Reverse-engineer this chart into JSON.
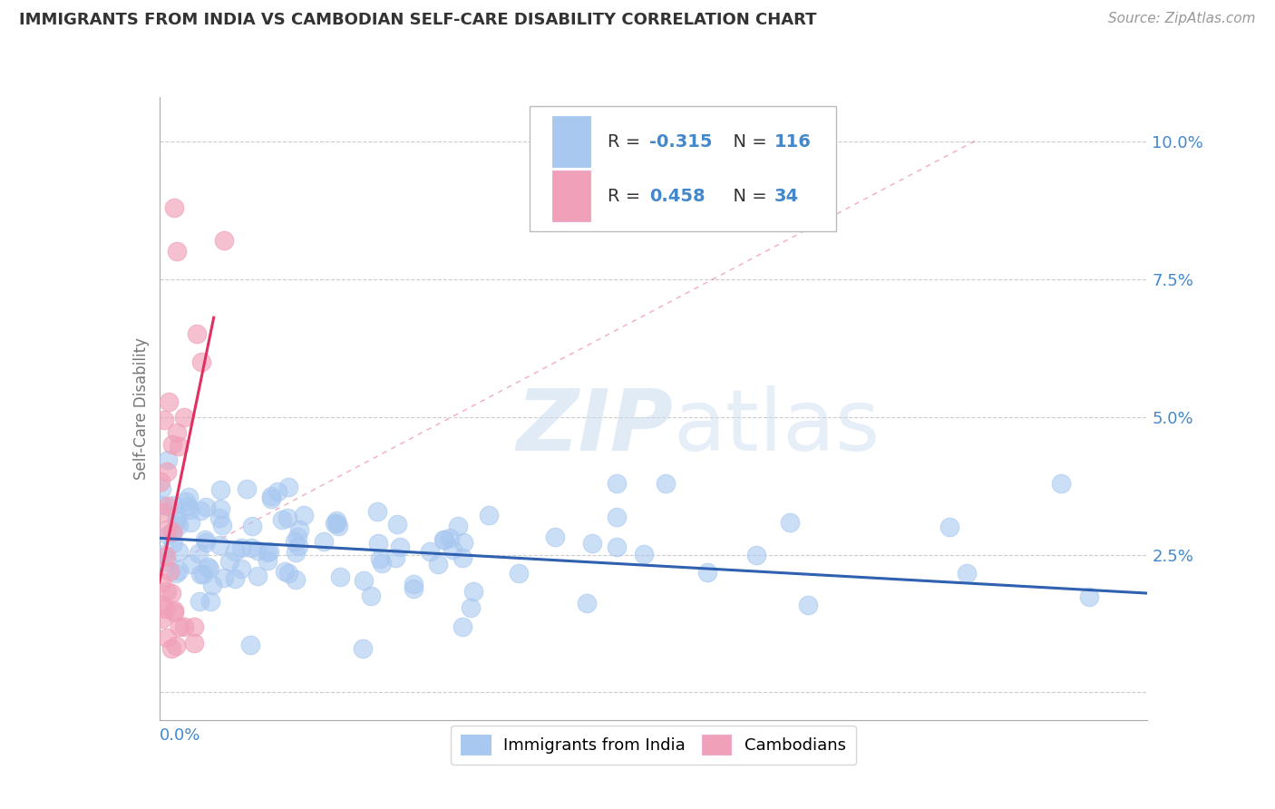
{
  "title": "IMMIGRANTS FROM INDIA VS CAMBODIAN SELF-CARE DISABILITY CORRELATION CHART",
  "source": "Source: ZipAtlas.com",
  "ylabel": "Self-Care Disability",
  "yticks": [
    0.0,
    0.025,
    0.05,
    0.075,
    0.1
  ],
  "ytick_labels": [
    "",
    "2.5%",
    "5.0%",
    "7.5%",
    "10.0%"
  ],
  "xlim": [
    0.0,
    0.4
  ],
  "ylim": [
    -0.005,
    0.108
  ],
  "color_blue": "#A8C8F0",
  "color_pink": "#F0A0B8",
  "color_line_blue": "#3060B0",
  "color_line_pink": "#E03060",
  "color_title": "#333333",
  "color_source": "#999999",
  "color_axis_label": "#777777",
  "color_tick_blue": "#4488CC",
  "watermark_color": "#C8DCF0",
  "grid_color": "#CCCCCC",
  "legend_r1_color": "#3366CC",
  "legend_n1_color": "#333333",
  "india_trend_x0": 0.0,
  "india_trend_x1": 0.4,
  "india_trend_y0": 0.028,
  "india_trend_y1": 0.018,
  "camb_trend_x0": 0.0,
  "camb_trend_x1": 0.022,
  "camb_trend_y0": 0.02,
  "camb_trend_y1": 0.068
}
